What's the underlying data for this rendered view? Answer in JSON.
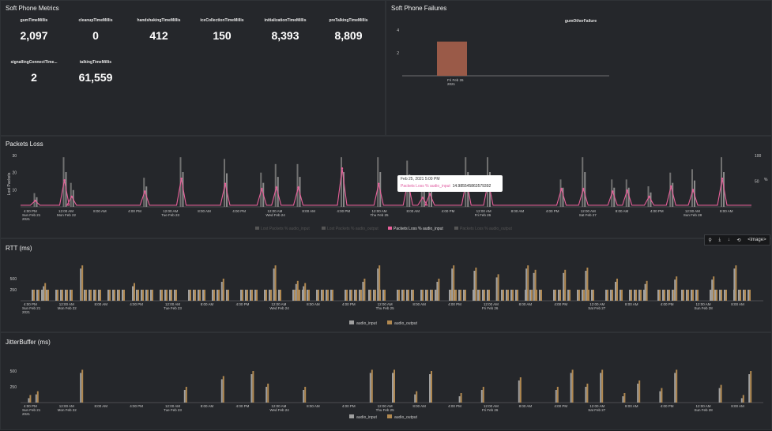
{
  "metrics_panel": {
    "title": "Soft Phone Metrics",
    "items": [
      {
        "label": "gumTimeMillis",
        "value": "2,097"
      },
      {
        "label": "cleanupTimeMillis",
        "value": "0"
      },
      {
        "label": "handshakingTimeMillis",
        "value": "412"
      },
      {
        "label": "iceCollectionTimeMillis",
        "value": "150"
      },
      {
        "label": "initializationTimeMillis",
        "value": "8,393"
      },
      {
        "label": "preTalkingTimeMillis",
        "value": "8,809"
      },
      {
        "label": "signallingConnectTime...",
        "value": "2"
      },
      {
        "label": "talkingTimeMillis",
        "value": "61,559"
      }
    ]
  },
  "failures_panel": {
    "title": "Soft Phone Failures",
    "chart_data": {
      "type": "bar",
      "title": "gumOtherFailure",
      "categories": [
        "Fri Feb 26 2021"
      ],
      "x_tick_line1": "Fri Feb 26",
      "x_tick_line2": "2021",
      "values": [
        3
      ],
      "yticks": [
        "4",
        "2"
      ],
      "ylim": [
        0,
        4.5
      ],
      "color": "#9a5a48"
    }
  },
  "packets_panel": {
    "title": "Packets Loss",
    "y_left_label": "Lost Packets",
    "y_right_label": "%",
    "y_left_ticks": [
      "30",
      "20",
      "10"
    ],
    "y_right_ticks": [
      "100",
      "50"
    ],
    "x_ticks": [
      {
        "l1": "4:00 PM",
        "l2": "Sun Feb 21",
        "l3": "2021"
      },
      {
        "l1": "12:00 AM",
        "l2": "Mon Feb 22",
        "l3": ""
      },
      {
        "l1": "8:00 AM",
        "l2": "",
        "l3": ""
      },
      {
        "l1": "4:00 PM",
        "l2": "",
        "l3": ""
      },
      {
        "l1": "12:00 AM",
        "l2": "Tue Feb 23",
        "l3": ""
      },
      {
        "l1": "8:00 AM",
        "l2": "",
        "l3": ""
      },
      {
        "l1": "4:00 PM",
        "l2": "",
        "l3": ""
      },
      {
        "l1": "12:00 AM",
        "l2": "Wed Feb 24",
        "l3": ""
      },
      {
        "l1": "8:00 AM",
        "l2": "",
        "l3": ""
      },
      {
        "l1": "4:00 PM",
        "l2": "",
        "l3": ""
      },
      {
        "l1": "12:00 AM",
        "l2": "Thu Feb 25",
        "l3": ""
      },
      {
        "l1": "8:00 AM",
        "l2": "",
        "l3": ""
      },
      {
        "l1": "4:00 PM",
        "l2": "",
        "l3": ""
      },
      {
        "l1": "12:00 AM",
        "l2": "Fri Feb 26",
        "l3": ""
      },
      {
        "l1": "8:00 AM",
        "l2": "",
        "l3": ""
      },
      {
        "l1": "4:00 PM",
        "l2": "",
        "l3": ""
      },
      {
        "l1": "12:00 AM",
        "l2": "Sat Feb 27",
        "l3": ""
      },
      {
        "l1": "8:00 AM",
        "l2": "",
        "l3": ""
      },
      {
        "l1": "4:00 PM",
        "l2": "",
        "l3": ""
      },
      {
        "l1": "12:00 AM",
        "l2": "Sun Feb 28",
        "l3": ""
      },
      {
        "l1": "8:00 AM",
        "l2": "",
        "l3": ""
      }
    ],
    "legend": [
      {
        "name": "Lost Packets % audio_input",
        "color": "#555555"
      },
      {
        "name": "Lost Packets % audio_output",
        "color": "#555555"
      },
      {
        "name": "Packets Loss % audio_input",
        "color": "#e8609a"
      },
      {
        "name": "Packets Loss % audio_output",
        "color": "#555555"
      }
    ],
    "tooltip": {
      "time": "Feb 25, 2021 5:00 PM",
      "key": "Packets Loss % audio_input",
      "value": "14.985545863579392"
    },
    "chart_data": {
      "type": "bar",
      "line_color": "#e8609a",
      "bar_color": "#707070",
      "ylim": [
        0,
        30
      ],
      "y2lim": [
        0,
        100
      ],
      "spikes_x": [
        0.02,
        0.06,
        0.07,
        0.17,
        0.22,
        0.28,
        0.33,
        0.35,
        0.38,
        0.44,
        0.49,
        0.53,
        0.55,
        0.56,
        0.61,
        0.64,
        0.74,
        0.77,
        0.81,
        0.83,
        0.86,
        0.89,
        0.92,
        0.96
      ],
      "spikes_percent": [
        12,
        52,
        20,
        30,
        55,
        45,
        35,
        38,
        38,
        75,
        45,
        50,
        18,
        25,
        52,
        50,
        35,
        35,
        30,
        32,
        20,
        40,
        33,
        55
      ],
      "spikes_lost": [
        8,
        29,
        14,
        17,
        29,
        28,
        20,
        25,
        25,
        29,
        29,
        27,
        14,
        15,
        29,
        29,
        16,
        29,
        16,
        16,
        12,
        20,
        22,
        29
      ]
    }
  },
  "toolbar": {
    "zoom": "⚲",
    "download": "⤓",
    "arrow": "↓",
    "reset": "⟲",
    "label": "<image>"
  },
  "rtt_panel": {
    "title": "RTT (ms)",
    "y_ticks": [
      "500",
      "250"
    ],
    "ylim": [
      0,
      1000
    ],
    "legend": [
      {
        "name": "audio_input",
        "color": "#a0a0a0"
      },
      {
        "name": "audio_output",
        "color": "#b08850"
      }
    ],
    "chart_data": {
      "type": "bar",
      "base_value": 250,
      "spikes_x": [
        0.03,
        0.08,
        0.15,
        0.27,
        0.34,
        0.37,
        0.38,
        0.46,
        0.48,
        0.56,
        0.58,
        0.61,
        0.64,
        0.68,
        0.69,
        0.73,
        0.76,
        0.8,
        0.84,
        0.88,
        0.93,
        0.96
      ],
      "spikes_y": [
        400,
        800,
        400,
        500,
        800,
        450,
        400,
        500,
        800,
        500,
        800,
        750,
        600,
        800,
        700,
        700,
        750,
        500,
        450,
        550,
        550,
        800
      ]
    }
  },
  "jitter_panel": {
    "title": "JitterBuffer (ms)",
    "y_ticks": [
      "500",
      "250"
    ],
    "ylim": [
      0,
      700
    ],
    "legend": [
      {
        "name": "audio_input",
        "color": "#a0a0a0"
      },
      {
        "name": "audio_output",
        "color": "#b08850"
      }
    ],
    "chart_data": {
      "type": "bar",
      "spikes_x": [
        0.01,
        0.02,
        0.08,
        0.22,
        0.27,
        0.31,
        0.33,
        0.38,
        0.47,
        0.5,
        0.53,
        0.55,
        0.59,
        0.62,
        0.67,
        0.72,
        0.74,
        0.76,
        0.78,
        0.81,
        0.83,
        0.86,
        0.88,
        0.94,
        0.97,
        0.98
      ],
      "spikes_y": [
        120,
        180,
        520,
        250,
        420,
        500,
        300,
        250,
        520,
        520,
        180,
        500,
        150,
        250,
        400,
        250,
        520,
        300,
        520,
        150,
        350,
        230,
        520,
        280,
        120,
        500
      ]
    }
  }
}
